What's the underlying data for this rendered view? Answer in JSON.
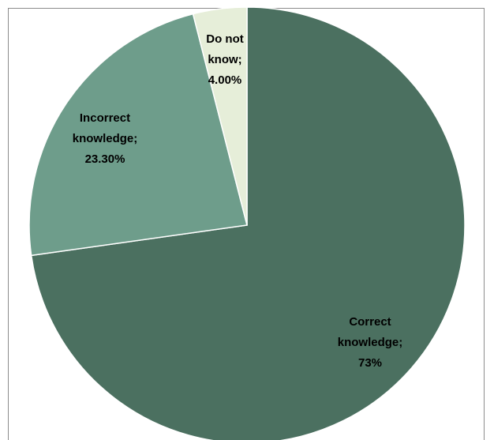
{
  "chart_data": {
    "type": "pie",
    "title": "",
    "slices": [
      {
        "label": "Correct knowledge",
        "value": 73,
        "value_text": "73%",
        "label_lines": [
          "Correct",
          "knowledge;",
          "73%"
        ],
        "color": "#4b7060"
      },
      {
        "label": "Incorrect knowledge",
        "value": 23.3,
        "value_text": "23.30%",
        "label_lines": [
          "Incorrect",
          "knowledge;",
          "23.30%"
        ],
        "color": "#6e9d8b"
      },
      {
        "label": "Do not know",
        "value": 4.0,
        "value_text": "4.00%",
        "label_lines": [
          "Do not",
          "know;",
          "4.00%"
        ],
        "color": "#e6eed9"
      }
    ],
    "start_angle_deg": 0,
    "direction": "clockwise",
    "legend": "none",
    "border_color": "#8c8c8c",
    "slice_stroke": "#ffffff"
  }
}
